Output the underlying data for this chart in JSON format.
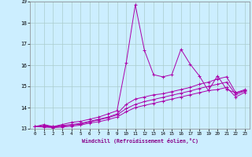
{
  "background_color": "#cceeff",
  "line_color": "#aa00aa",
  "grid_color": "#aacccc",
  "xlabel": "Windchill (Refroidissement éolien,°C)",
  "xlim": [
    -0.5,
    23.5
  ],
  "ylim": [
    13,
    19
  ],
  "yticks": [
    13,
    14,
    15,
    16,
    17,
    18,
    19
  ],
  "xticks": [
    0,
    1,
    2,
    3,
    4,
    5,
    6,
    7,
    8,
    9,
    10,
    11,
    12,
    13,
    14,
    15,
    16,
    17,
    18,
    19,
    20,
    21,
    22,
    23
  ],
  "series": [
    [
      13.1,
      13.2,
      13.1,
      13.2,
      13.3,
      13.35,
      13.45,
      13.55,
      13.7,
      13.85,
      16.1,
      18.85,
      16.7,
      15.55,
      15.45,
      15.55,
      16.75,
      16.05,
      15.5,
      14.8,
      15.5,
      14.85,
      14.7,
      14.8
    ],
    [
      13.1,
      13.15,
      13.1,
      13.15,
      13.2,
      13.25,
      13.35,
      13.45,
      13.55,
      13.7,
      14.15,
      14.4,
      14.5,
      14.6,
      14.65,
      14.75,
      14.85,
      14.95,
      15.1,
      15.2,
      15.35,
      15.45,
      14.7,
      14.85
    ],
    [
      13.1,
      13.1,
      13.08,
      13.12,
      13.17,
      13.22,
      13.32,
      13.42,
      13.52,
      13.65,
      13.95,
      14.15,
      14.28,
      14.38,
      14.48,
      14.58,
      14.68,
      14.78,
      14.9,
      15.0,
      15.1,
      15.2,
      14.62,
      14.78
    ],
    [
      13.1,
      13.08,
      13.05,
      13.08,
      13.12,
      13.17,
      13.27,
      13.33,
      13.43,
      13.55,
      13.8,
      14.0,
      14.1,
      14.2,
      14.3,
      14.4,
      14.5,
      14.6,
      14.7,
      14.8,
      14.85,
      14.95,
      14.5,
      14.72
    ]
  ]
}
